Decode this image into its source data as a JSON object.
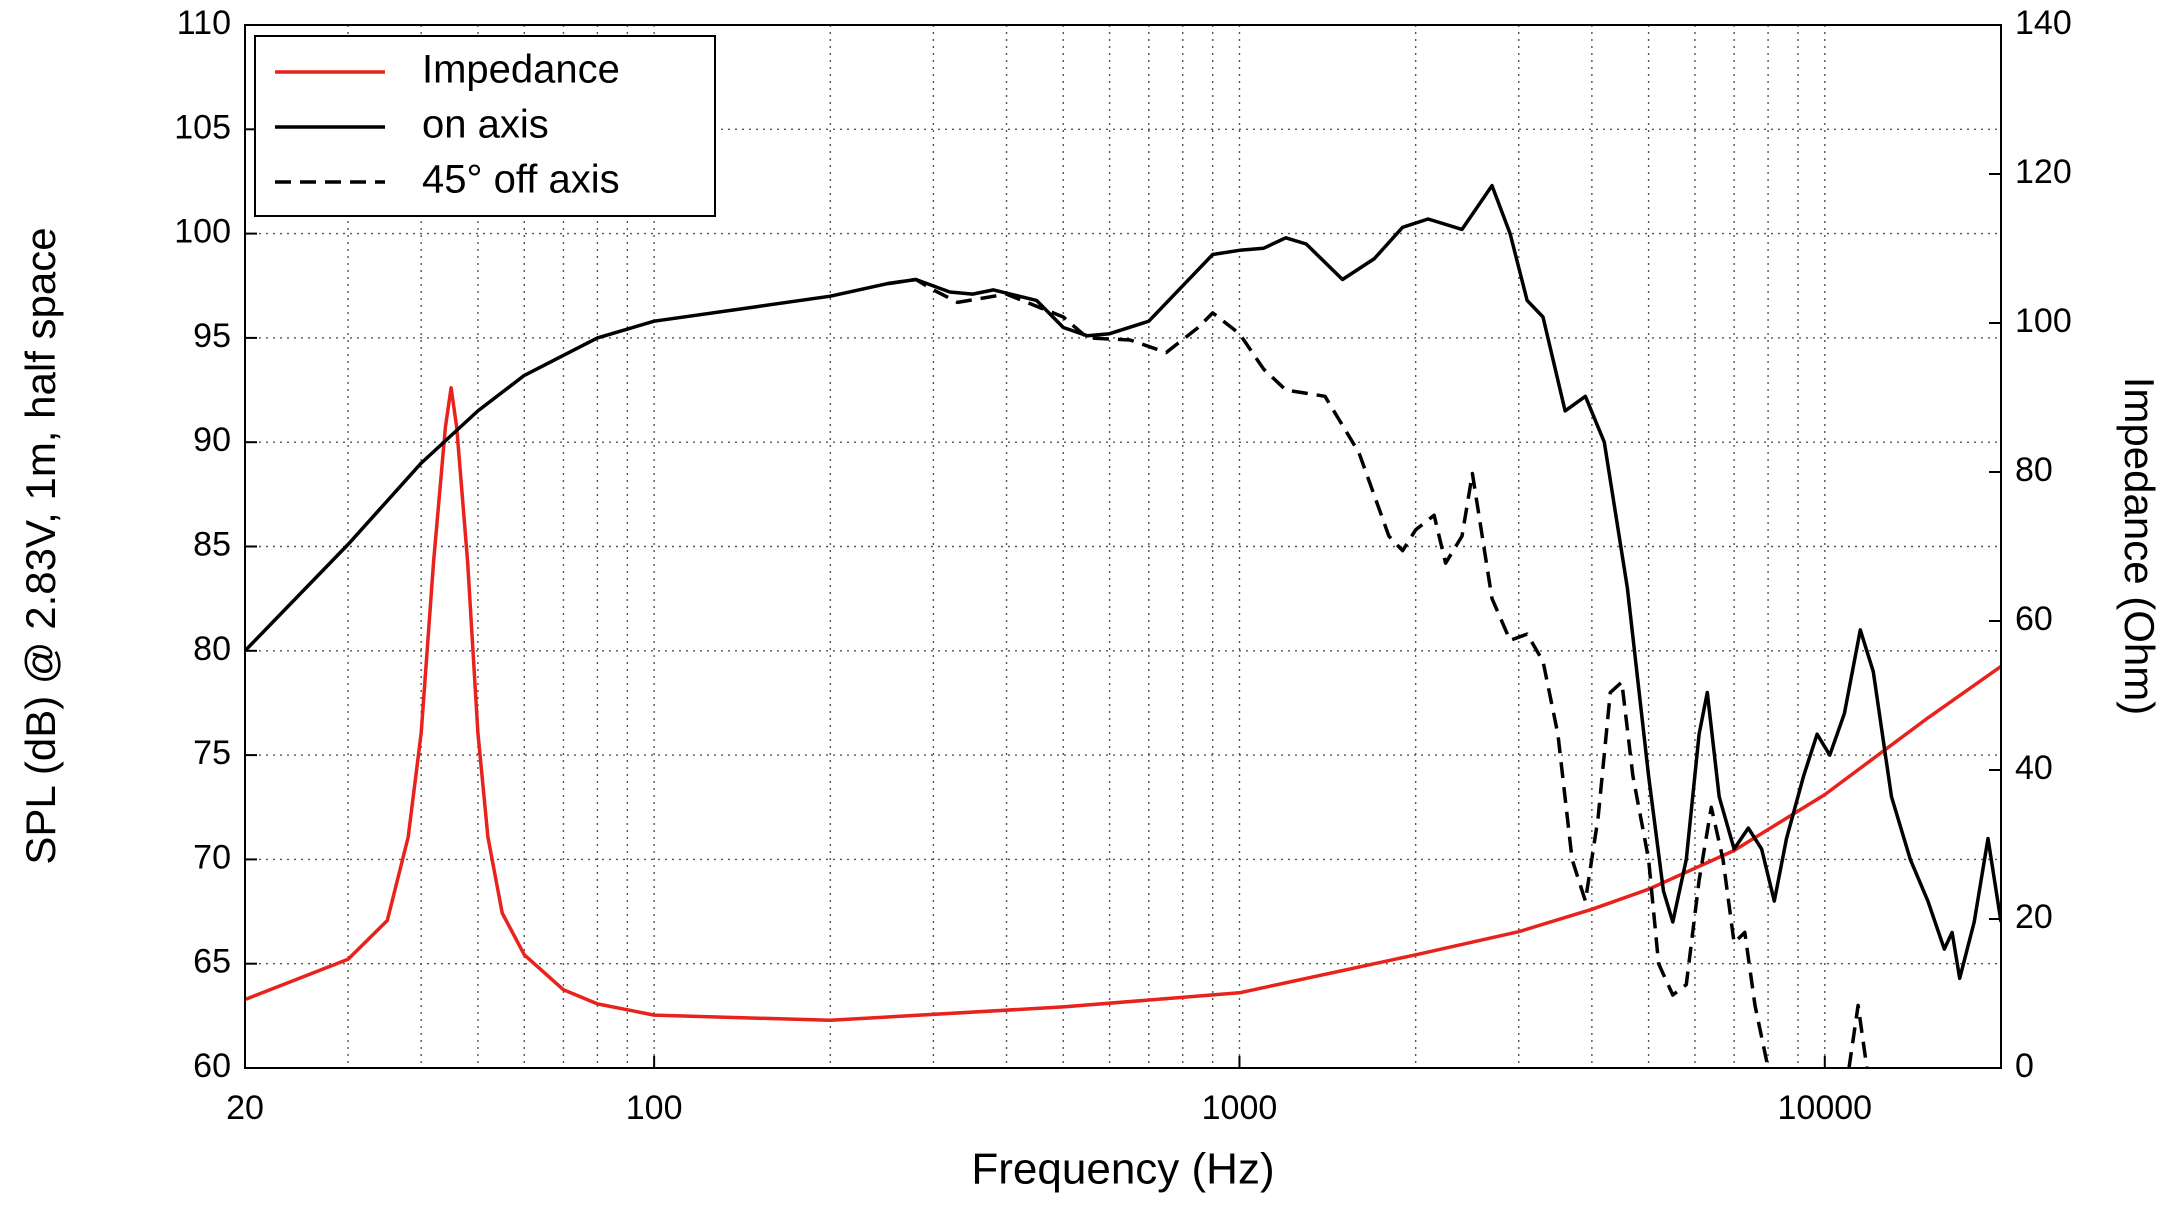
{
  "chart_data": {
    "type": "line",
    "x_label": "Frequency (Hz)",
    "y_label": "SPL (dB) @ 2.83V, 1m, half space",
    "y2_label": "Impedance (Ohm)",
    "xscale": "log",
    "xlim": [
      20,
      20000
    ],
    "xticks": [
      20,
      100,
      1000,
      10000
    ],
    "ylim": [
      60,
      110
    ],
    "yticks": [
      60,
      65,
      70,
      75,
      80,
      85,
      90,
      95,
      100,
      105,
      110
    ],
    "y2lim": [
      0,
      140
    ],
    "y2ticks": [
      0,
      20,
      40,
      60,
      80,
      100,
      120,
      140
    ],
    "grid": true,
    "legend": "upper left",
    "series": [
      {
        "name": "Impedance",
        "color": "#e8221c",
        "axis": "y2",
        "dash": false,
        "x": [
          20,
          30,
          35,
          38,
          40,
          42,
          44,
          45,
          46,
          48,
          50,
          52,
          55,
          60,
          70,
          80,
          100,
          200,
          500,
          1000,
          2000,
          3000,
          4000,
          5000,
          7000,
          10000,
          15000,
          20000
        ],
        "values": [
          9.2,
          14.6,
          19.8,
          31,
          45,
          68,
          86,
          91.3,
          86,
          68,
          45,
          31,
          20.8,
          15.2,
          10.5,
          8.6,
          7.1,
          6.4,
          8.2,
          10.1,
          15.2,
          18.3,
          21.3,
          24,
          29.2,
          36.7,
          47,
          53.9
        ]
      },
      {
        "name": "on axis",
        "color": "#000000",
        "dash": false,
        "x": [
          20,
          30,
          40,
          50,
          60,
          80,
          100,
          150,
          200,
          250,
          280,
          320,
          350,
          380,
          450,
          500,
          550,
          600,
          700,
          800,
          900,
          1000,
          1100,
          1200,
          1300,
          1500,
          1700,
          1900,
          2100,
          2400,
          2700,
          2900,
          3100,
          3300,
          3600,
          3900,
          4200,
          4600,
          5000,
          5300,
          5500,
          5800,
          6100,
          6300,
          6600,
          7000,
          7400,
          7800,
          8200,
          8600,
          9200,
          9700,
          10200,
          10800,
          11500,
          12100,
          13000,
          14000,
          15000,
          16000,
          16500,
          17000,
          18000,
          19000,
          20000
        ],
        "values": [
          80,
          85.1,
          89,
          91.5,
          93.2,
          95,
          95.8,
          96.5,
          97,
          97.6,
          97.8,
          97.2,
          97.1,
          97.3,
          96.8,
          95.5,
          95.1,
          95.2,
          95.8,
          97.5,
          99,
          99.2,
          99.3,
          99.8,
          99.5,
          97.8,
          98.8,
          100.3,
          100.7,
          100.2,
          102.3,
          100,
          96.8,
          96,
          91.5,
          92.2,
          90,
          83,
          74,
          68.5,
          67,
          70,
          76,
          78,
          73,
          70.5,
          71.5,
          70.5,
          68,
          71,
          74,
          76,
          75,
          77,
          81,
          79,
          73,
          70,
          68,
          65.7,
          66.5,
          64.3,
          67,
          71,
          67
        ]
      },
      {
        "name": "45° off axis",
        "color": "#000000",
        "dash": true,
        "x": [
          250,
          280,
          300,
          330,
          400,
          500,
          550,
          650,
          750,
          850,
          900,
          1000,
          1100,
          1200,
          1400,
          1600,
          1800,
          1900,
          2000,
          2150,
          2250,
          2400,
          2500,
          2700,
          2900,
          3100,
          3300,
          3500,
          3700,
          3900,
          4100,
          4300,
          4500,
          4700,
          5000,
          5200,
          5500,
          5800,
          6100,
          6400,
          6700,
          7000,
          7300,
          7600,
          8000,
          9000,
          11000,
          11400,
          11800
        ],
        "values": [
          97.6,
          97.8,
          97.3,
          96.7,
          97.1,
          96,
          95,
          94.9,
          94.3,
          95.5,
          96.2,
          95.2,
          93.5,
          92.5,
          92.2,
          89.5,
          85.5,
          84.8,
          85.8,
          86.5,
          84.2,
          85.5,
          88.5,
          82.5,
          80.5,
          80.8,
          79.5,
          76,
          70,
          68,
          72,
          78,
          78.5,
          74,
          70,
          65,
          63.5,
          64,
          69,
          72.5,
          70,
          66,
          66.5,
          63,
          60,
          null,
          60,
          63,
          60
        ]
      }
    ]
  }
}
